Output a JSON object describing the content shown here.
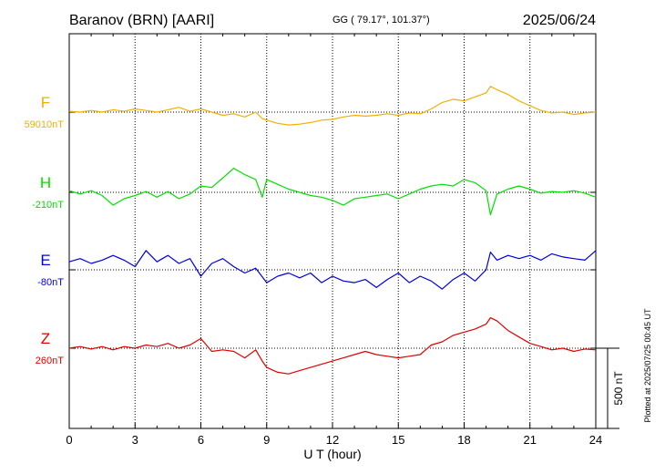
{
  "header": {
    "station": "Baranov (BRN)  [AARI]",
    "coords": "GG ( 79.17°, 101.37°)",
    "date": "2025/06/24"
  },
  "footer": {
    "scale_label": "500 nT",
    "plotted": "Plotted at 2025/07/25 00:45 UT"
  },
  "chart_data": {
    "type": "line",
    "xlabel": "U T (hour)",
    "xlim": [
      0,
      24
    ],
    "xticks": [
      0,
      3,
      6,
      9,
      12,
      15,
      18,
      21,
      24
    ],
    "grid": true,
    "scale_bar_nT": 500,
    "series": [
      {
        "name": "F",
        "baseline_label": "59010nT",
        "color": "#f0b000",
        "values": [
          [
            0,
            5
          ],
          [
            0.5,
            0
          ],
          [
            1,
            10
          ],
          [
            1.5,
            0
          ],
          [
            2,
            15
          ],
          [
            2.5,
            5
          ],
          [
            3,
            20
          ],
          [
            3.5,
            10
          ],
          [
            4,
            0
          ],
          [
            4.5,
            15
          ],
          [
            5,
            30
          ],
          [
            5.5,
            5
          ],
          [
            6,
            20
          ],
          [
            6.5,
            0
          ],
          [
            7,
            -20
          ],
          [
            7.5,
            -10
          ],
          [
            8,
            -30
          ],
          [
            8.5,
            0
          ],
          [
            8.8,
            -40
          ],
          [
            9,
            -50
          ],
          [
            9.5,
            -70
          ],
          [
            10,
            -80
          ],
          [
            10.5,
            -75
          ],
          [
            11,
            -65
          ],
          [
            11.5,
            -50
          ],
          [
            12,
            -45
          ],
          [
            12.5,
            -30
          ],
          [
            13,
            -20
          ],
          [
            13.5,
            -25
          ],
          [
            14,
            -20
          ],
          [
            14.5,
            -10
          ],
          [
            15,
            -20
          ],
          [
            15.5,
            -5
          ],
          [
            16,
            -10
          ],
          [
            16.5,
            20
          ],
          [
            17,
            60
          ],
          [
            17.5,
            80
          ],
          [
            18,
            70
          ],
          [
            18.5,
            95
          ],
          [
            19,
            120
          ],
          [
            19.2,
            160
          ],
          [
            19.5,
            140
          ],
          [
            20,
            110
          ],
          [
            20.5,
            70
          ],
          [
            21,
            40
          ],
          [
            21.5,
            10
          ],
          [
            22,
            -5
          ],
          [
            22.5,
            0
          ],
          [
            23,
            -15
          ],
          [
            23.5,
            -5
          ],
          [
            24,
            0
          ]
        ]
      },
      {
        "name": "H",
        "baseline_label": "-210nT",
        "color": "#00e000",
        "values": [
          [
            0,
            10
          ],
          [
            0.5,
            -10
          ],
          [
            1,
            10
          ],
          [
            1.5,
            -20
          ],
          [
            2,
            -80
          ],
          [
            2.5,
            -40
          ],
          [
            3,
            -20
          ],
          [
            3.5,
            5
          ],
          [
            4,
            -30
          ],
          [
            4.5,
            5
          ],
          [
            5,
            -40
          ],
          [
            5.5,
            -10
          ],
          [
            6,
            40
          ],
          [
            6.5,
            30
          ],
          [
            7,
            90
          ],
          [
            7.5,
            150
          ],
          [
            8,
            110
          ],
          [
            8.5,
            80
          ],
          [
            8.8,
            -30
          ],
          [
            9,
            80
          ],
          [
            9.5,
            50
          ],
          [
            10,
            20
          ],
          [
            10.5,
            0
          ],
          [
            11,
            -20
          ],
          [
            11.5,
            -30
          ],
          [
            12,
            -50
          ],
          [
            12.5,
            -80
          ],
          [
            13,
            -40
          ],
          [
            13.5,
            -30
          ],
          [
            14,
            -20
          ],
          [
            14.5,
            -10
          ],
          [
            15,
            -40
          ],
          [
            15.5,
            -10
          ],
          [
            16,
            20
          ],
          [
            16.5,
            40
          ],
          [
            17,
            50
          ],
          [
            17.5,
            40
          ],
          [
            18,
            80
          ],
          [
            18.5,
            60
          ],
          [
            19,
            10
          ],
          [
            19.2,
            -140
          ],
          [
            19.5,
            -10
          ],
          [
            20,
            20
          ],
          [
            20.5,
            40
          ],
          [
            21,
            20
          ],
          [
            21.5,
            -5
          ],
          [
            22,
            5
          ],
          [
            22.5,
            0
          ],
          [
            23,
            10
          ],
          [
            23.5,
            -5
          ],
          [
            24,
            -30
          ]
        ]
      },
      {
        "name": "E",
        "baseline_label": "-80nT",
        "color": "#0000e0",
        "values": [
          [
            0,
            50
          ],
          [
            0.5,
            70
          ],
          [
            1,
            40
          ],
          [
            1.5,
            60
          ],
          [
            2,
            90
          ],
          [
            2.5,
            60
          ],
          [
            3,
            20
          ],
          [
            3.5,
            120
          ],
          [
            4,
            50
          ],
          [
            4.5,
            90
          ],
          [
            5,
            40
          ],
          [
            5.5,
            70
          ],
          [
            6,
            -40
          ],
          [
            6.5,
            40
          ],
          [
            7,
            70
          ],
          [
            7.5,
            20
          ],
          [
            8,
            -20
          ],
          [
            8.5,
            10
          ],
          [
            9,
            -80
          ],
          [
            9.5,
            -40
          ],
          [
            10,
            -20
          ],
          [
            10.5,
            -50
          ],
          [
            11,
            -20
          ],
          [
            11.5,
            -80
          ],
          [
            12,
            -40
          ],
          [
            12.5,
            -70
          ],
          [
            13,
            -80
          ],
          [
            13.5,
            -60
          ],
          [
            14,
            -110
          ],
          [
            14.5,
            -60
          ],
          [
            15,
            -20
          ],
          [
            15.5,
            -80
          ],
          [
            16,
            -40
          ],
          [
            16.5,
            -70
          ],
          [
            17,
            -120
          ],
          [
            17.5,
            -60
          ],
          [
            18,
            -20
          ],
          [
            18.5,
            -70
          ],
          [
            19,
            0
          ],
          [
            19.2,
            110
          ],
          [
            19.5,
            60
          ],
          [
            20,
            90
          ],
          [
            20.5,
            70
          ],
          [
            21,
            90
          ],
          [
            21.5,
            60
          ],
          [
            22,
            100
          ],
          [
            22.5,
            80
          ],
          [
            23,
            70
          ],
          [
            23.5,
            60
          ],
          [
            24,
            120
          ]
        ]
      },
      {
        "name": "Z",
        "baseline_label": "260nT",
        "color": "#e00000",
        "values": [
          [
            0,
            0
          ],
          [
            0.5,
            10
          ],
          [
            1,
            -5
          ],
          [
            1.5,
            10
          ],
          [
            2,
            -10
          ],
          [
            2.5,
            10
          ],
          [
            3,
            0
          ],
          [
            3.5,
            20
          ],
          [
            4,
            10
          ],
          [
            4.5,
            30
          ],
          [
            5,
            0
          ],
          [
            5.5,
            20
          ],
          [
            6,
            60
          ],
          [
            6.5,
            -20
          ],
          [
            7,
            -10
          ],
          [
            7.5,
            -20
          ],
          [
            8,
            -60
          ],
          [
            8.5,
            -10
          ],
          [
            8.8,
            -80
          ],
          [
            9,
            -120
          ],
          [
            9.5,
            -150
          ],
          [
            10,
            -160
          ],
          [
            10.5,
            -140
          ],
          [
            11,
            -120
          ],
          [
            11.5,
            -100
          ],
          [
            12,
            -80
          ],
          [
            12.5,
            -60
          ],
          [
            13,
            -40
          ],
          [
            13.5,
            -20
          ],
          [
            14,
            -40
          ],
          [
            14.5,
            -50
          ],
          [
            15,
            -60
          ],
          [
            15.5,
            -50
          ],
          [
            16,
            -40
          ],
          [
            16.5,
            20
          ],
          [
            17,
            40
          ],
          [
            17.5,
            80
          ],
          [
            18,
            100
          ],
          [
            18.5,
            120
          ],
          [
            19,
            150
          ],
          [
            19.2,
            190
          ],
          [
            19.5,
            170
          ],
          [
            20,
            110
          ],
          [
            20.5,
            70
          ],
          [
            21,
            30
          ],
          [
            21.5,
            10
          ],
          [
            22,
            -10
          ],
          [
            22.5,
            0
          ],
          [
            23,
            -20
          ],
          [
            23.5,
            -5
          ],
          [
            24,
            -10
          ]
        ]
      }
    ]
  }
}
